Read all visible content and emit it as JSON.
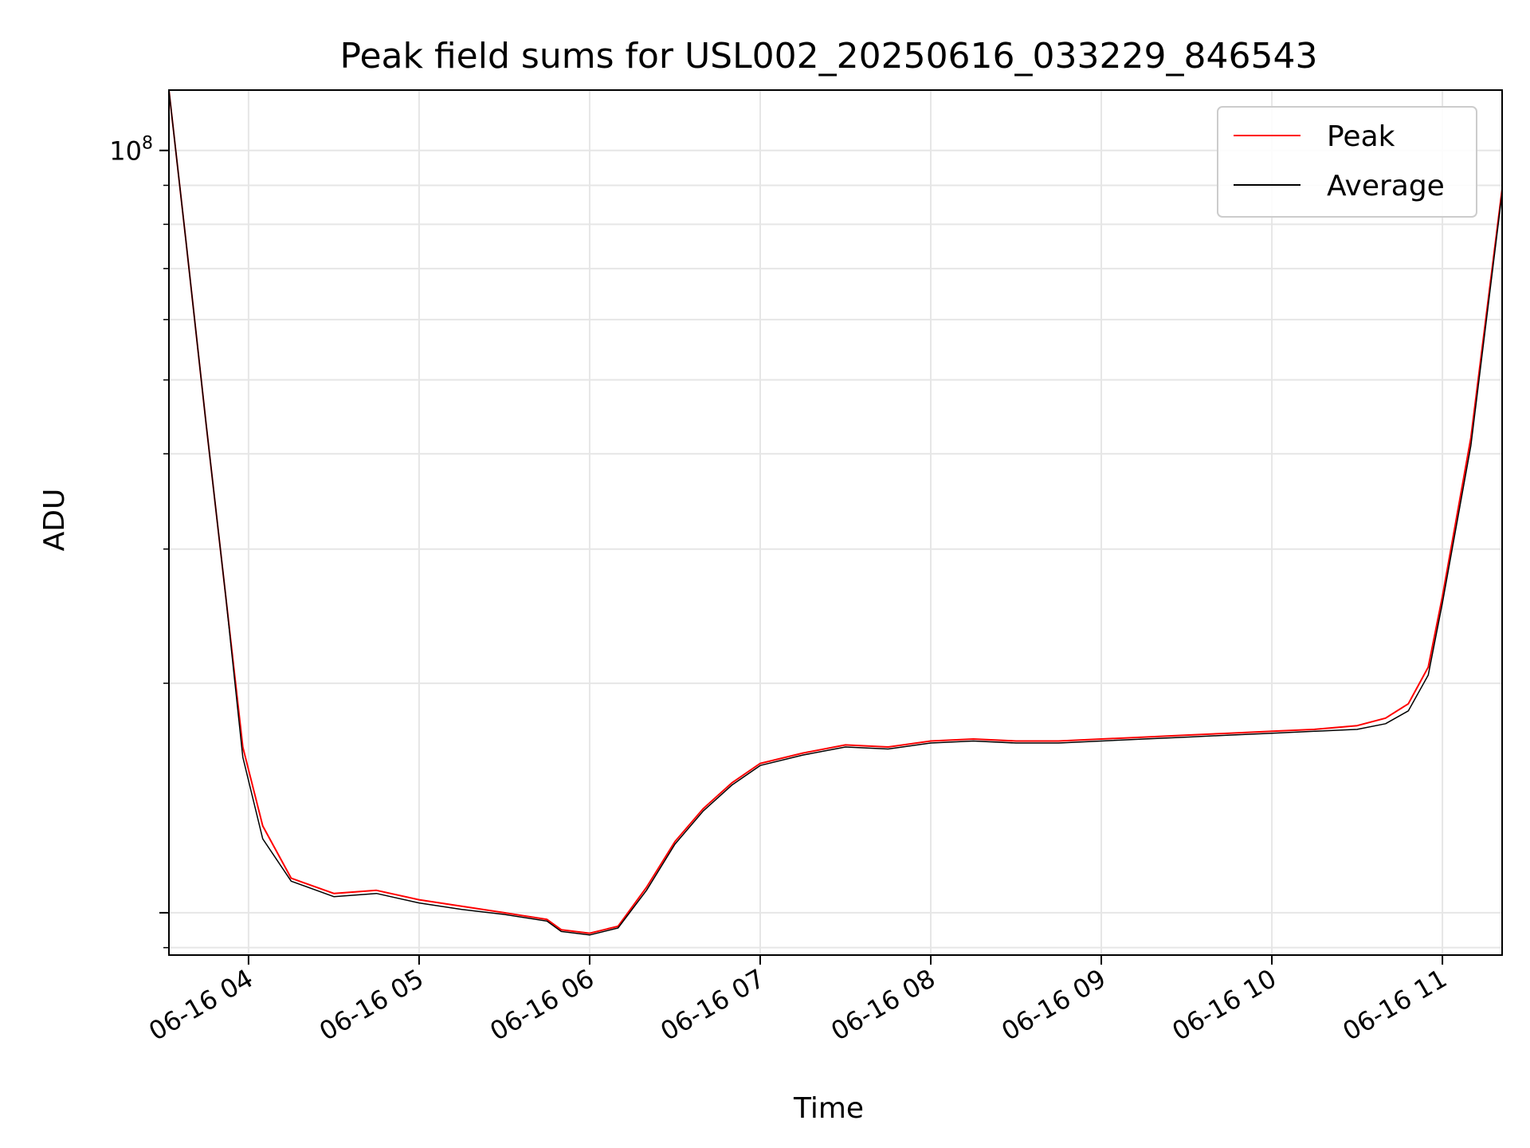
{
  "chart_data": {
    "type": "line",
    "title": "Peak field sums for USL002_20250616_033229_846543",
    "xlabel": "Time",
    "ylabel": "ADU",
    "xscale": "time (hours since 2025-06-16 03:32)",
    "yscale": "log",
    "xlim": [
      "06-16 03:32",
      "06-16 11:21"
    ],
    "ylim": [
      8800000.0,
      120000000.0
    ],
    "grid": true,
    "legend_position": "top-right",
    "x_ticks": [
      "06-16 04",
      "06-16 05",
      "06-16 06",
      "06-16 07",
      "06-16 08",
      "06-16 09",
      "06-16 10",
      "06-16 11"
    ],
    "y_ticks": [
      {
        "label": "10",
        "exponent": "8",
        "value": 100000000
      }
    ],
    "series": [
      {
        "name": "Peak",
        "color": "#ff0000",
        "x": [
          "03:32",
          "03:38",
          "03:45",
          "03:52",
          "03:58",
          "04:05",
          "04:15",
          "04:30",
          "04:45",
          "05:00",
          "05:15",
          "05:30",
          "05:45",
          "05:50",
          "06:00",
          "06:10",
          "06:20",
          "06:30",
          "06:40",
          "06:50",
          "07:00",
          "07:15",
          "07:30",
          "07:45",
          "08:00",
          "08:15",
          "08:30",
          "08:45",
          "09:00",
          "09:15",
          "09:30",
          "09:45",
          "10:00",
          "10:15",
          "10:30",
          "10:40",
          "10:48",
          "10:55",
          "11:00",
          "11:10",
          "11:21"
        ],
        "values": [
          120000000.0,
          76000000.0,
          44000000.0,
          26000000.0,
          16500000.0,
          13000000.0,
          11100000.0,
          10600000.0,
          10700000.0,
          10400000.0,
          10200000.0,
          10000000.0,
          9800000.0,
          9500000.0,
          9400000.0,
          9600000.0,
          10800000.0,
          12400000.0,
          13700000.0,
          14800000.0,
          15700000.0,
          16200000.0,
          16600000.0,
          16500000.0,
          16800000.0,
          16900000.0,
          16800000.0,
          16800000.0,
          16900000.0,
          17000000.0,
          17100000.0,
          17200000.0,
          17300000.0,
          17400000.0,
          17600000.0,
          18000000.0,
          18800000.0,
          21000000.0,
          26000000.0,
          42000000.0,
          89000000.0
        ]
      },
      {
        "name": "Average",
        "color": "#000000",
        "x": [
          "03:32",
          "03:38",
          "03:45",
          "03:52",
          "03:58",
          "04:05",
          "04:15",
          "04:30",
          "04:45",
          "05:00",
          "05:15",
          "05:30",
          "05:45",
          "05:50",
          "06:00",
          "06:10",
          "06:20",
          "06:30",
          "06:40",
          "06:50",
          "07:00",
          "07:15",
          "07:30",
          "07:45",
          "08:00",
          "08:15",
          "08:30",
          "08:45",
          "09:00",
          "09:15",
          "09:30",
          "09:45",
          "10:00",
          "10:15",
          "10:30",
          "10:40",
          "10:48",
          "10:55",
          "11:00",
          "11:10",
          "11:21"
        ],
        "values": [
          120000000.0,
          76000000.0,
          44000000.0,
          26000000.0,
          16000000.0,
          12500000.0,
          11000000.0,
          10500000.0,
          10600000.0,
          10300000.0,
          10100000.0,
          9950000.0,
          9750000.0,
          9450000.0,
          9350000.0,
          9550000.0,
          10700000.0,
          12300000.0,
          13600000.0,
          14700000.0,
          15600000.0,
          16100000.0,
          16500000.0,
          16400000.0,
          16700000.0,
          16800000.0,
          16700000.0,
          16700000.0,
          16800000.0,
          16900000.0,
          17000000.0,
          17100000.0,
          17200000.0,
          17300000.0,
          17400000.0,
          17700000.0,
          18400000.0,
          20500000.0,
          25500000.0,
          41000000.0,
          88000000.0
        ]
      }
    ]
  }
}
